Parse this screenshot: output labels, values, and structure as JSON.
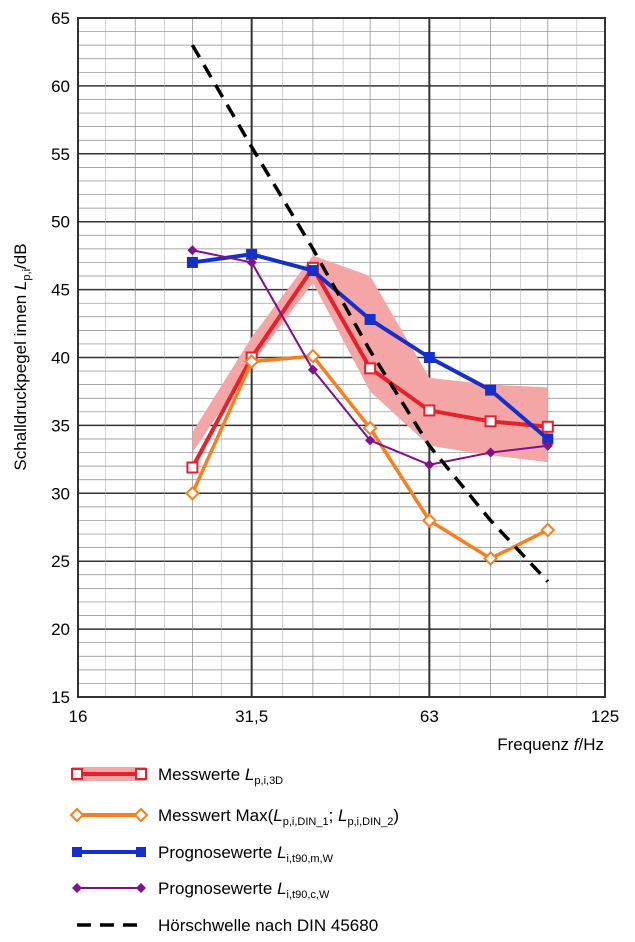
{
  "chart_data": {
    "type": "line",
    "title": "",
    "ylabel": {
      "text": "Schalldruckpegel innen ",
      "var": "L",
      "sub": "p,i",
      "unit": "/dB"
    },
    "xlabel": {
      "text": "Frequenz ",
      "var": "f",
      "unit": "/Hz"
    },
    "x_scale": "log",
    "xlim": [
      16,
      125
    ],
    "ylim": [
      15,
      65
    ],
    "x_ticks": [
      16,
      31.5,
      63,
      125
    ],
    "x_tick_labels": [
      "16",
      "31,5",
      "63",
      "125"
    ],
    "y_ticks": [
      15,
      20,
      25,
      30,
      35,
      40,
      45,
      50,
      55,
      60,
      65
    ],
    "y_tick_labels": [
      "15",
      "20",
      "25",
      "30",
      "35",
      "40",
      "45",
      "50",
      "55",
      "60",
      "65"
    ],
    "grid": true,
    "legend_position": "bottom",
    "x": [
      25,
      31.5,
      40,
      50,
      63,
      80,
      100
    ],
    "band": {
      "color": "#f4a6a6",
      "lower": [
        33,
        39.5,
        45.5,
        37.5,
        33.5,
        32.8,
        32.3
      ],
      "upper": [
        34.5,
        41.5,
        47.5,
        46,
        38.5,
        38,
        37.8
      ]
    },
    "series": [
      {
        "name": "Messwerte",
        "label_var": "L",
        "label_sub": "p,i,3D",
        "color": "#e8202a",
        "marker": "square-open",
        "values": [
          31.9,
          40.0,
          46.6,
          39.2,
          36.1,
          35.3,
          34.9
        ]
      },
      {
        "name": "Messwert Max(",
        "label_var": "L",
        "label_sub": "p,i,DIN_1",
        "label_var2": "L",
        "label_sub2": "p,i,DIN_2",
        "label_end": ")",
        "color": "#f7801e",
        "marker": "diamond-open",
        "values": [
          30.0,
          39.7,
          40.1,
          34.8,
          28.0,
          25.2,
          27.3
        ]
      },
      {
        "name": "Prognosewerte",
        "label_var": "L",
        "label_sub": "i,t90,m,W",
        "color": "#1530c8",
        "marker": "square-filled",
        "values": [
          47.0,
          47.6,
          46.4,
          42.8,
          40.0,
          37.6,
          34.0
        ]
      },
      {
        "name": "Prognosewerte",
        "label_var": "L",
        "label_sub": "i,t90,c,W",
        "color": "#80108e",
        "marker": "diamond-filled",
        "values": [
          47.9,
          47.0,
          39.1,
          33.9,
          32.1,
          33.0,
          33.5
        ]
      },
      {
        "name": "Hörschwelle nach DIN 45680",
        "color": "#000000",
        "marker": "none",
        "dashed": true,
        "values": [
          63.0,
          55.5,
          48.0,
          40.5,
          33.5,
          28.0,
          23.5
        ]
      }
    ]
  }
}
